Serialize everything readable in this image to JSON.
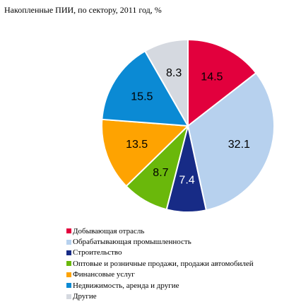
{
  "chart_data": {
    "type": "pie",
    "title": "Накопленные ПИИ, по сектору, 2011 год, %",
    "slices": [
      {
        "label": "Добывающая отрасль",
        "value": 14.5,
        "color": "#e2003d",
        "text_color": "#000000"
      },
      {
        "label": "Обрабатывающая промышленность",
        "value": 32.1,
        "color": "#b7d1ee",
        "text_color": "#000000"
      },
      {
        "label": "Строительство",
        "value": 7.4,
        "color": "#172b86",
        "text_color": "#ffffff"
      },
      {
        "label": "Оптовые и розничные продажи, продажи автомобилей",
        "value": 8.7,
        "color": "#6ab80b",
        "text_color": "#000000"
      },
      {
        "label": "Финансовые услуг",
        "value": 13.5,
        "color": "#fea301",
        "text_color": "#000000"
      },
      {
        "label": "Недвижимость, аренда и другие",
        "value": 15.5,
        "color": "#0b8ad4",
        "text_color": "#000000"
      },
      {
        "label": "Другие",
        "value": 8.3,
        "color": "#d5d9e0",
        "text_color": "#000000"
      }
    ],
    "legend_position": "bottom"
  }
}
